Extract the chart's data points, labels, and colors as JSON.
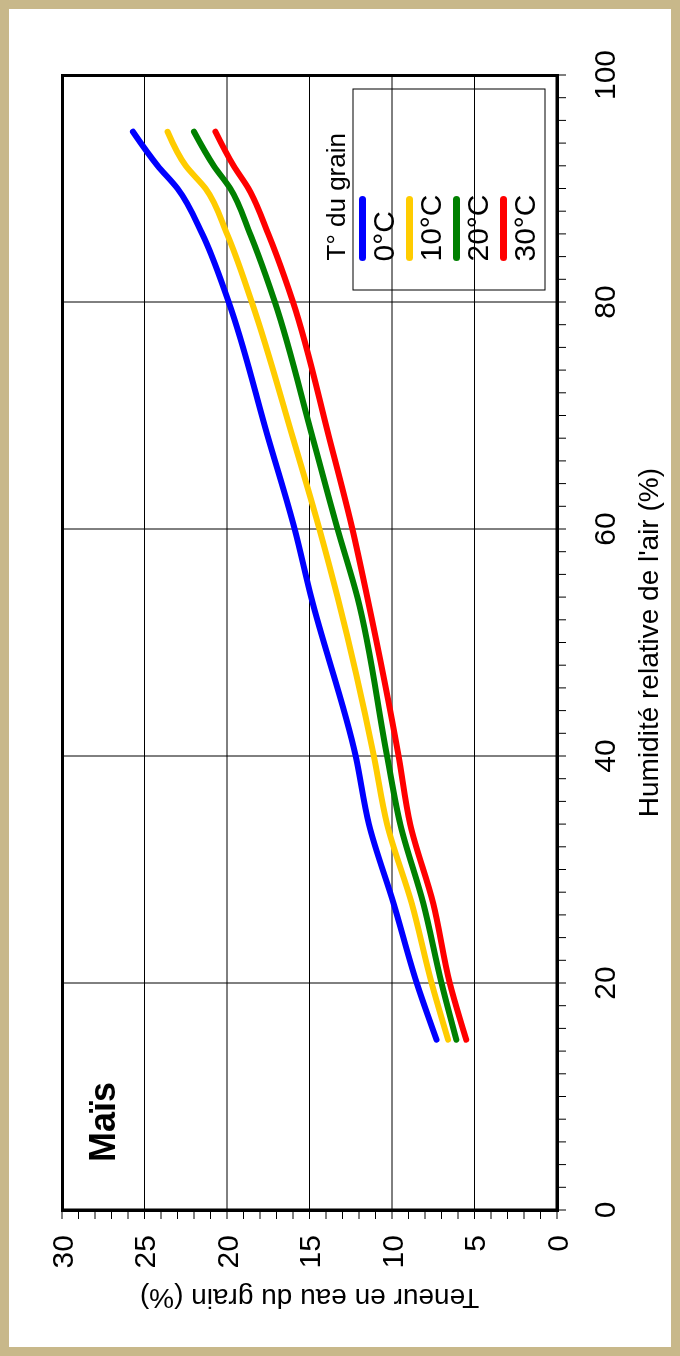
{
  "chart_data": {
    "type": "line",
    "title": "Maïs",
    "xlabel": "Teneur en eau du grain (%)",
    "ylabel": "Humidité relative de l'air (%)",
    "legend_title": "T° du grain",
    "legend": "top right",
    "grid": true,
    "series": [
      {
        "name": "0°C",
        "color": "#0000ff",
        "x": [
          7.3,
          8.5,
          9.9,
          11.4,
          12.2,
          14.9,
          15.9,
          17.5,
          19.9,
          21.5,
          23.0,
          24.2,
          25.7
        ],
        "values": [
          15,
          20,
          27,
          34,
          40,
          54,
          60,
          68,
          80,
          86,
          90,
          92,
          95
        ]
      },
      {
        "name": "10°C",
        "color": "#ffcc00",
        "x": [
          6.6,
          7.6,
          8.8,
          10.3,
          11.1,
          13.3,
          14.4,
          16.0,
          18.5,
          20.0,
          21.3,
          22.5,
          23.6
        ],
        "values": [
          15,
          20,
          27,
          34,
          40,
          54,
          60,
          68,
          80,
          86,
          90,
          92,
          95
        ]
      },
      {
        "name": "20°C",
        "color": "#008000",
        "x": [
          6.1,
          7.0,
          8.1,
          9.5,
          10.3,
          12.1,
          13.3,
          14.8,
          17.1,
          18.6,
          19.8,
          20.8,
          22.0
        ],
        "values": [
          15,
          20,
          27,
          34,
          40,
          54,
          60,
          68,
          80,
          86,
          90,
          92,
          95
        ]
      },
      {
        "name": "30°C",
        "color": "#ff0000",
        "x": [
          5.5,
          6.5,
          7.5,
          8.9,
          9.6,
          11.5,
          12.4,
          13.8,
          16.0,
          17.5,
          18.7,
          19.6,
          20.7
        ],
        "values": [
          15,
          20,
          27,
          34,
          40,
          54,
          60,
          68,
          80,
          86,
          90,
          92,
          95
        ]
      }
    ],
    "xlim": [
      30,
      0
    ],
    "xticks": [
      30,
      {
        "value": 29,
        "label": null
      },
      {
        "value": 28,
        "label": null
      },
      {
        "value": 27,
        "label": null
      },
      {
        "value": 26,
        "label": null
      },
      25,
      {
        "value": 24,
        "label": null
      },
      {
        "value": 23,
        "label": null
      },
      {
        "value": 22,
        "label": null
      },
      {
        "value": 21,
        "label": null
      },
      20,
      {
        "value": 19,
        "label": null
      },
      {
        "value": 18,
        "label": null
      },
      {
        "value": 17,
        "label": null
      },
      {
        "value": 16,
        "label": null
      },
      15,
      {
        "value": 14,
        "label": null
      },
      {
        "value": 13,
        "label": null
      },
      {
        "value": 12,
        "label": null
      },
      {
        "value": 11,
        "label": null
      },
      10,
      {
        "value": 9,
        "label": null
      },
      {
        "value": 8,
        "label": null
      },
      {
        "value": 7,
        "label": null
      },
      {
        "value": 6,
        "label": null
      },
      5,
      {
        "value": 4,
        "label": null
      },
      {
        "value": 3,
        "label": null
      },
      {
        "value": 2,
        "label": null
      },
      {
        "value": 1,
        "label": null
      },
      0
    ],
    "ylim": [
      0,
      100
    ],
    "yticks": [
      0,
      {
        "value": 2,
        "label": null
      },
      {
        "value": 4,
        "label": null
      },
      {
        "value": 6,
        "label": null
      },
      {
        "value": 8,
        "label": null
      },
      {
        "value": 10,
        "label": null
      },
      {
        "value": 12,
        "label": null
      },
      {
        "value": 14,
        "label": null
      },
      {
        "value": 16,
        "label": null
      },
      {
        "value": 18,
        "label": null
      },
      20,
      {
        "value": 22,
        "label": null
      },
      {
        "value": 24,
        "label": null
      },
      {
        "value": 26,
        "label": null
      },
      {
        "value": 28,
        "label": null
      },
      {
        "value": 30,
        "label": null
      },
      {
        "value": 32,
        "label": null
      },
      {
        "value": 34,
        "label": null
      },
      {
        "value": 36,
        "label": null
      },
      {
        "value": 38,
        "label": null
      },
      40,
      {
        "value": 42,
        "label": null
      },
      {
        "value": 44,
        "label": null
      },
      {
        "value": 46,
        "label": null
      },
      {
        "value": 48,
        "label": null
      },
      {
        "value": 50,
        "label": null
      },
      {
        "value": 52,
        "label": null
      },
      {
        "value": 54,
        "label": null
      },
      {
        "value": 56,
        "label": null
      },
      {
        "value": 58,
        "label": null
      },
      60,
      {
        "value": 62,
        "label": null
      },
      {
        "value": 64,
        "label": null
      },
      {
        "value": 66,
        "label": null
      },
      {
        "value": 68,
        "label": null
      },
      {
        "value": 70,
        "label": null
      },
      {
        "value": 72,
        "label": null
      },
      {
        "value": 74,
        "label": null
      },
      {
        "value": 76,
        "label": null
      },
      {
        "value": 78,
        "label": null
      },
      80,
      {
        "value": 82,
        "label": null
      },
      {
        "value": 84,
        "label": null
      },
      {
        "value": 86,
        "label": null
      },
      {
        "value": 88,
        "label": null
      },
      {
        "value": 90,
        "label": null
      },
      {
        "value": 92,
        "label": null
      },
      {
        "value": 94,
        "label": null
      },
      {
        "value": 96,
        "label": null
      },
      {
        "value": 98,
        "label": null
      },
      100
    ]
  }
}
